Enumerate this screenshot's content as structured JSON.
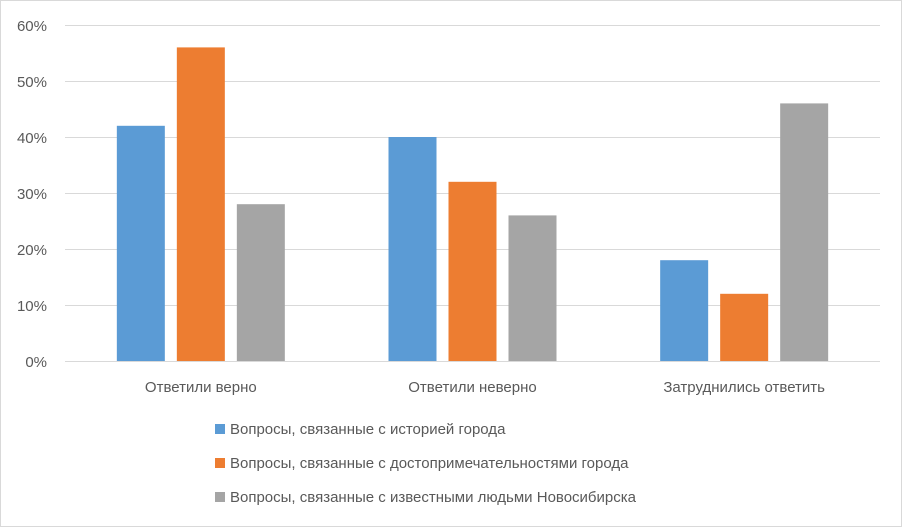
{
  "chart_data": {
    "type": "bar",
    "title": "",
    "xlabel": "",
    "ylabel": "",
    "ylim": [
      0,
      60
    ],
    "yticks": [
      "0%",
      "10%",
      "20%",
      "30%",
      "40%",
      "50%",
      "60%"
    ],
    "grid": true,
    "legend_position": "bottom",
    "categories": [
      "Ответили верно",
      "Ответили неверно",
      "Затруднились ответить"
    ],
    "series": [
      {
        "name": "Вопросы, связанные с историей города",
        "color": "#5B9BD5",
        "values": [
          42,
          40,
          18
        ]
      },
      {
        "name": "Вопросы, связанные с достопримечательностями города",
        "color": "#ED7D31",
        "values": [
          56,
          32,
          12
        ]
      },
      {
        "name": "Вопросы, связанные с известными людьми Новосибирска",
        "color": "#A5A5A5",
        "values": [
          28,
          26,
          46
        ]
      }
    ]
  }
}
